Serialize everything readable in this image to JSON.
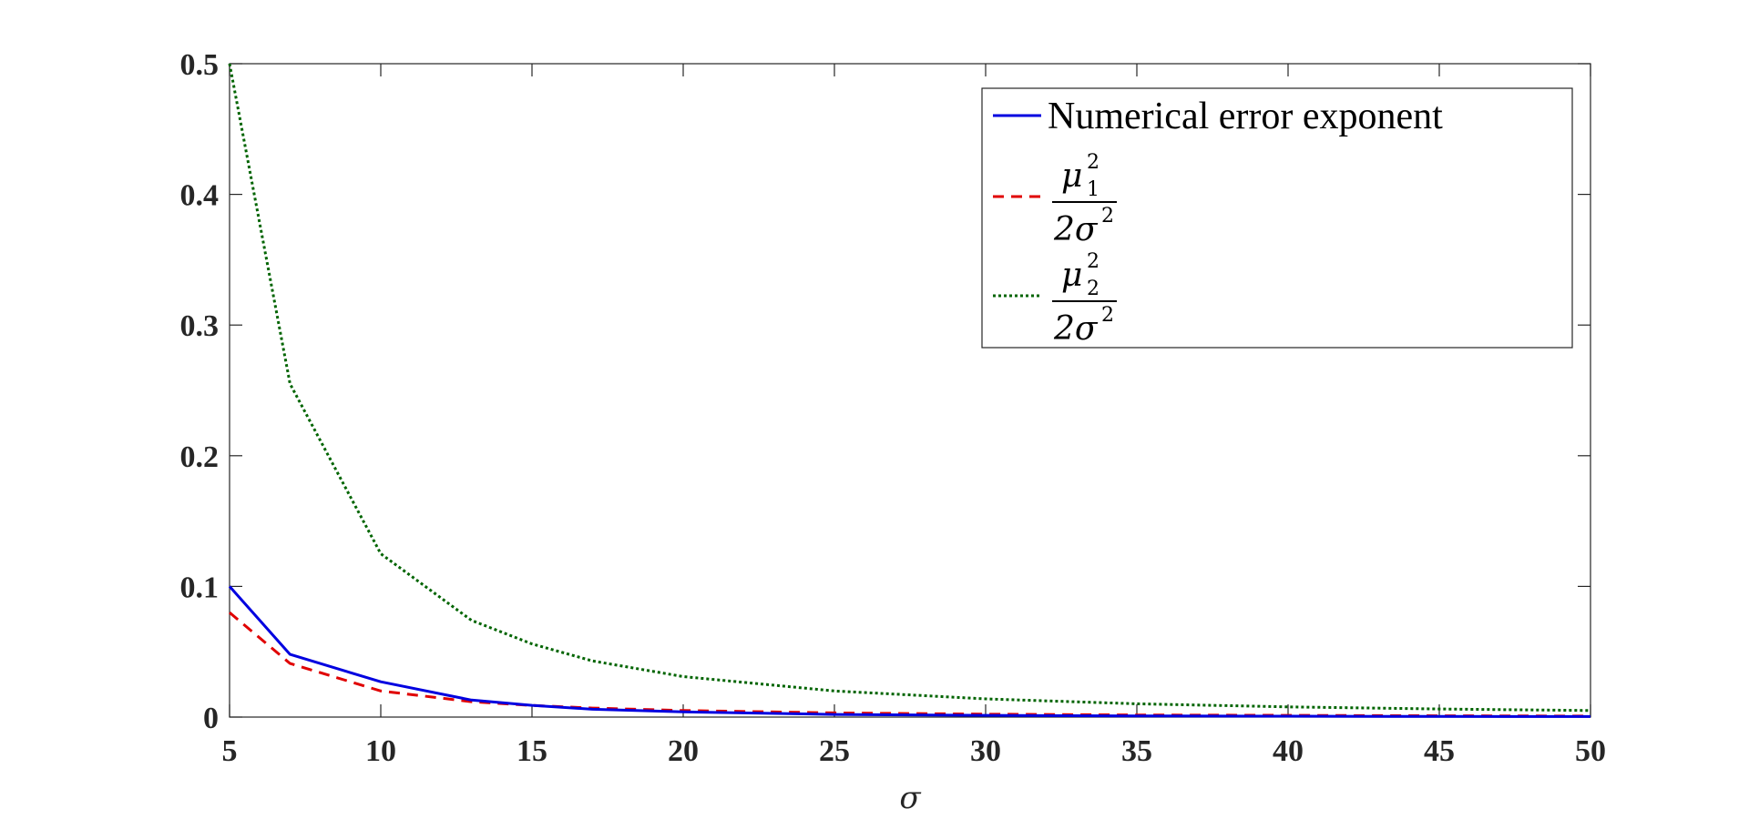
{
  "chart_data": {
    "type": "line",
    "xlabel": "σ",
    "ylabel": "",
    "title": "",
    "xlim": [
      5,
      50
    ],
    "ylim": [
      0,
      0.5
    ],
    "xticks": [
      "5",
      "10",
      "15",
      "20",
      "25",
      "30",
      "35",
      "40",
      "45",
      "50"
    ],
    "yticks": [
      "0",
      "0.1",
      "0.2",
      "0.3",
      "0.4",
      "0.5"
    ],
    "grid": false,
    "legend_position": "top-right",
    "series": [
      {
        "name": "Numerical error exponent",
        "color": "#0000e0",
        "style": "solid",
        "x": [
          5,
          7,
          10,
          13,
          15,
          17,
          20,
          25,
          30,
          35,
          40,
          45,
          50
        ],
        "y": [
          0.1,
          0.048,
          0.027,
          0.013,
          0.009,
          0.006,
          0.004,
          0.002,
          0.0013,
          0.0009,
          0.0007,
          0.0005,
          0.0004
        ]
      },
      {
        "name": "μ1² / 2σ²",
        "color": "#e00000",
        "style": "dashed",
        "x": [
          5,
          7,
          10,
          13,
          15,
          17,
          20,
          25,
          30,
          35,
          40,
          45,
          50
        ],
        "y": [
          0.08,
          0.041,
          0.02,
          0.0118,
          0.0089,
          0.0069,
          0.005,
          0.0032,
          0.0022,
          0.0016,
          0.0013,
          0.001,
          0.0008
        ]
      },
      {
        "name": "μ2² / 2σ²",
        "color": "#006400",
        "style": "dotted",
        "x": [
          5,
          7,
          10,
          13,
          15,
          17,
          20,
          25,
          30,
          35,
          40,
          45,
          50
        ],
        "y": [
          0.5,
          0.255,
          0.125,
          0.074,
          0.056,
          0.043,
          0.031,
          0.02,
          0.0139,
          0.0102,
          0.0078,
          0.0062,
          0.005
        ]
      }
    ],
    "legend": {
      "entry1_text": "Numerical error exponent",
      "entry2_num_base": "μ",
      "entry2_num_sub": "1",
      "entry2_num_sup": "2",
      "entry2_den": "2σ",
      "entry2_den_sup": "2",
      "entry3_num_base": "μ",
      "entry3_num_sub": "2",
      "entry3_num_sup": "2",
      "entry3_den": "2σ",
      "entry3_den_sup": "2"
    }
  }
}
